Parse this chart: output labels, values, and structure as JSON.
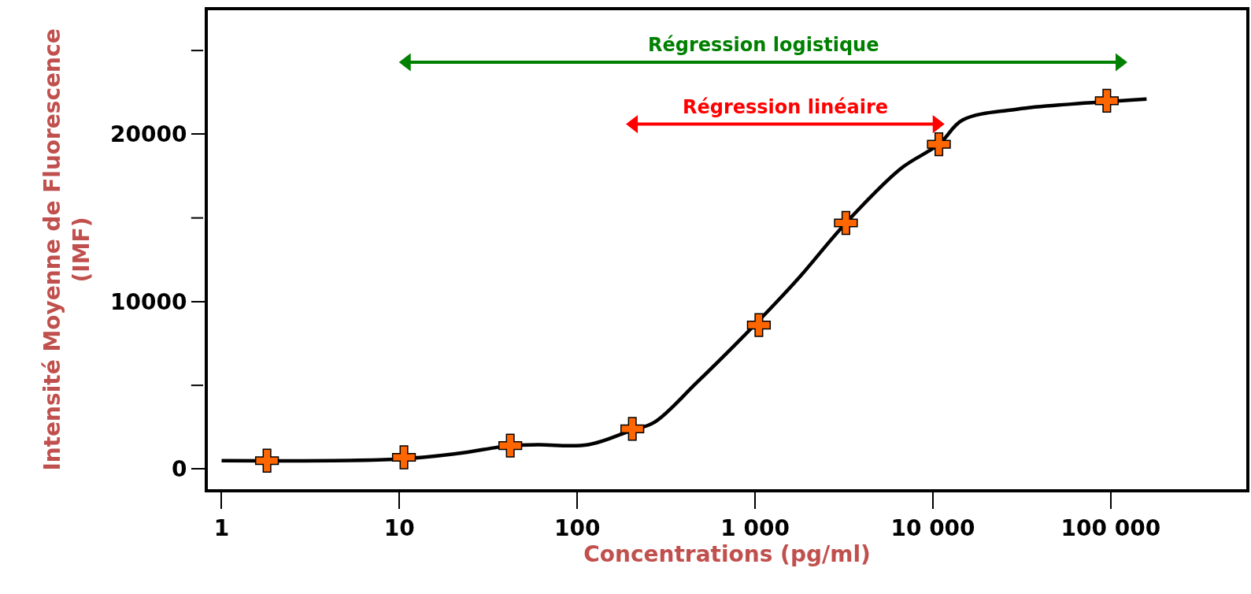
{
  "chart_data": {
    "type": "scatter",
    "xlabel": "Concentrations (pg/ml)",
    "ylabel": "Intensité Moyenne de Fluorescence\n(IMF)",
    "log": "x",
    "xlim": [
      0.82,
      590000
    ],
    "xticks": [
      1,
      10,
      100,
      {
        "value": 1000,
        "label": "1 000"
      },
      {
        "value": 10000,
        "label": "10 000"
      },
      {
        "value": 100000,
        "label": "100 000"
      }
    ],
    "ylim": [
      -1300,
      27500
    ],
    "yticks": [
      0,
      {
        "value": 5000,
        "label": null
      },
      10000,
      {
        "value": 15000,
        "label": null
      },
      20000,
      {
        "value": 25000,
        "label": null
      }
    ],
    "grid": false,
    "legend": false,
    "marker": "cross",
    "series": [
      {
        "type": "line",
        "marker": "none",
        "color": "#000000",
        "x": [
          1,
          10,
          21,
          42,
          60,
          115,
          200,
          272,
          466,
          800,
          1300,
          1790,
          3240,
          6600,
          10800,
          14700,
          30000,
          60000,
          159000
        ],
        "values": [
          500,
          600,
          920,
          1400,
          1450,
          1450,
          2300,
          2800,
          5130,
          7590,
          9900,
          11500,
          14700,
          17950,
          19400,
          20850,
          21500,
          21800,
          22100
        ]
      },
      {
        "color": "#ff6600",
        "x": [
          1.8,
          10.6,
          42,
          204,
          1050,
          3240,
          10800,
          95000
        ],
        "values": [
          500,
          700,
          1400,
          2400,
          8600,
          14700,
          19400,
          22000
        ]
      },
      {
        "type": "line",
        "marker": "triangle",
        "name": "Régression logistique",
        "color": "#008000",
        "x": [
          11,
          112000
        ],
        "values": [
          24300,
          24300
        ]
      },
      {
        "type": "line",
        "marker": "triangle",
        "name": "Régression linéaire",
        "color": "#ff0000",
        "x": [
          208,
          10500
        ],
        "values": [
          20600,
          20600
        ]
      }
    ]
  }
}
